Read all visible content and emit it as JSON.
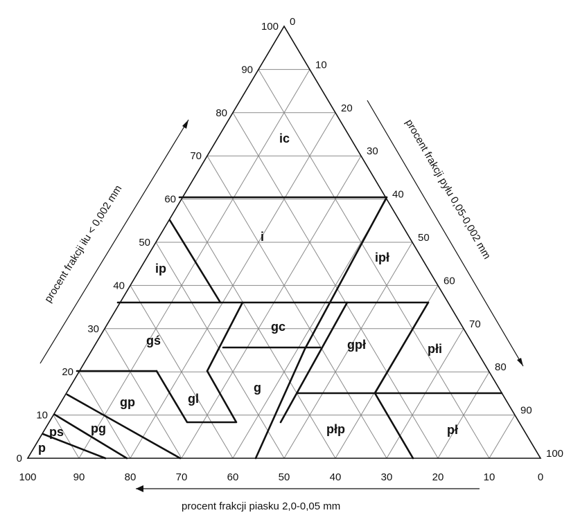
{
  "axes": {
    "clay": {
      "title": "procent frakcji iłu < 0,002 mm",
      "ticks": [
        "0",
        "10",
        "20",
        "30",
        "40",
        "50",
        "60",
        "70",
        "80",
        "90",
        "100"
      ]
    },
    "silt": {
      "title": "procent frakcji pyłu 0,05-0,002 mm",
      "ticks": [
        "0",
        "10",
        "20",
        "30",
        "40",
        "50",
        "60",
        "70",
        "80",
        "90",
        "100"
      ]
    },
    "sand": {
      "title": "procent frakcji piasku 2,0-0,05 mm",
      "ticks": [
        "100",
        "90",
        "80",
        "70",
        "60",
        "50",
        "40",
        "30",
        "20",
        "10",
        "0"
      ]
    }
  },
  "zones": [
    "ic",
    "i",
    "ip",
    "ipł",
    "gś",
    "gc",
    "gpł",
    "płi",
    "gp",
    "gl",
    "g",
    "pg",
    "ps",
    "p",
    "płp",
    "pł"
  ]
}
